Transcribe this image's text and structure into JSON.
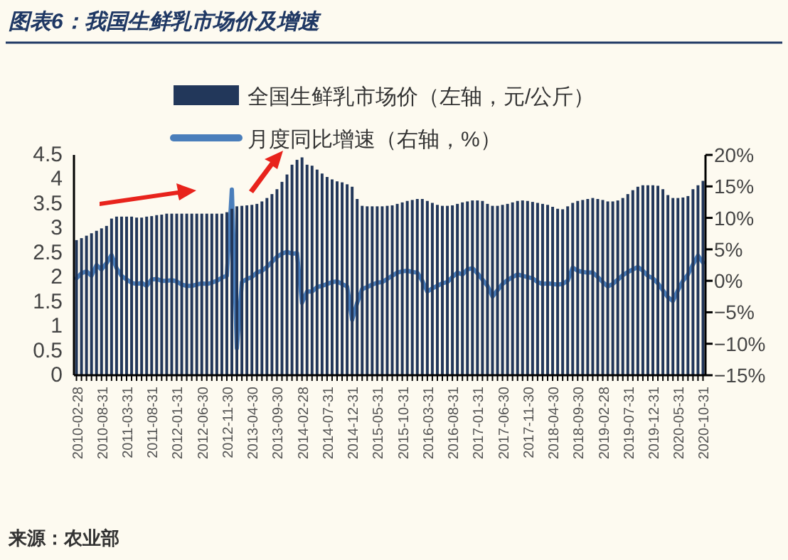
{
  "chart_data": {
    "type": "bar",
    "title": "图表6：我国生鲜乳市场价及增速",
    "legend": "top",
    "grid": false,
    "categories": [
      "2010-02-28",
      null,
      null,
      null,
      null,
      "2010-08-31",
      null,
      null,
      null,
      null,
      "2011-03-31",
      null,
      null,
      null,
      null,
      "2011-08-31",
      null,
      null,
      null,
      null,
      "2012-01-31",
      null,
      null,
      null,
      null,
      "2012-06-30",
      null,
      null,
      null,
      null,
      "2012-11-30",
      null,
      null,
      null,
      null,
      "2013-04-30",
      null,
      null,
      null,
      null,
      "2013-09-30",
      null,
      null,
      null,
      null,
      "2014-02-28",
      null,
      null,
      null,
      null,
      "2014-07-31",
      null,
      null,
      null,
      null,
      "2014-12-31",
      null,
      null,
      null,
      null,
      "2015-05-31",
      null,
      null,
      null,
      null,
      "2015-10-31",
      null,
      null,
      null,
      null,
      "2016-03-31",
      null,
      null,
      null,
      null,
      "2016-08-31",
      null,
      null,
      null,
      null,
      "2017-01-31",
      null,
      null,
      null,
      null,
      "2017-06-30",
      null,
      null,
      null,
      null,
      "2017-11-30",
      null,
      null,
      null,
      null,
      "2018-04-30",
      null,
      null,
      null,
      null,
      "2018-09-30",
      null,
      null,
      null,
      null,
      "2019-02-28",
      null,
      null,
      null,
      null,
      "2019-07-31",
      null,
      null,
      null,
      null,
      "2019-12-31",
      null,
      null,
      null,
      null,
      "2020-05-31",
      null,
      null,
      null,
      null,
      "2020-10-31"
    ],
    "series": [
      {
        "name": "全国生鲜乳市场价（左轴，元/公斤）",
        "color": "#22375a",
        "values": [
          2.76,
          2.8,
          2.85,
          2.9,
          2.95,
          3.0,
          3.05,
          3.2,
          3.24,
          3.24,
          3.24,
          3.24,
          3.22,
          3.22,
          3.24,
          3.25,
          3.27,
          3.28,
          3.3,
          3.3,
          3.3,
          3.3,
          3.3,
          3.3,
          3.3,
          3.3,
          3.3,
          3.3,
          3.3,
          3.3,
          3.33,
          3.4,
          3.45,
          3.46,
          3.47,
          3.48,
          3.5,
          3.55,
          3.62,
          3.7,
          3.8,
          3.95,
          4.1,
          4.3,
          4.4,
          4.45,
          4.3,
          4.28,
          4.2,
          4.12,
          4.05,
          4.0,
          3.96,
          3.94,
          3.9,
          3.85,
          3.6,
          3.46,
          3.45,
          3.45,
          3.45,
          3.45,
          3.46,
          3.47,
          3.5,
          3.53,
          3.56,
          3.58,
          3.6,
          3.6,
          3.56,
          3.52,
          3.48,
          3.46,
          3.46,
          3.47,
          3.5,
          3.53,
          3.55,
          3.57,
          3.57,
          3.56,
          3.5,
          3.46,
          3.46,
          3.48,
          3.5,
          3.53,
          3.56,
          3.57,
          3.56,
          3.54,
          3.52,
          3.5,
          3.48,
          3.44,
          3.4,
          3.39,
          3.45,
          3.52,
          3.56,
          3.58,
          3.6,
          3.62,
          3.6,
          3.58,
          3.55,
          3.55,
          3.57,
          3.62,
          3.7,
          3.78,
          3.85,
          3.88,
          3.88,
          3.88,
          3.87,
          3.8,
          3.68,
          3.62,
          3.62,
          3.63,
          3.66,
          3.8,
          3.88,
          3.97
        ]
      },
      {
        "name": "月度同比增速（右轴，%）",
        "type": "line",
        "axis": "y2",
        "color": "#4a7ebb",
        "values": [
          0.4,
          1.2,
          1.5,
          0.8,
          2.5,
          1.8,
          2.8,
          4.1,
          2.0,
          0.8,
          0.2,
          -0.3,
          -0.5,
          -0.3,
          -0.8,
          0.2,
          0.3,
          0.0,
          0.0,
          0.1,
          -0.1,
          -0.6,
          -0.8,
          -0.8,
          -0.6,
          -0.4,
          -0.5,
          -0.3,
          0.0,
          0.5,
          0.8,
          14.5,
          -10.7,
          -0.2,
          0.3,
          0.6,
          1.3,
          1.6,
          2.2,
          3.0,
          3.8,
          4.3,
          4.6,
          4.3,
          4.4,
          -3.5,
          -1.7,
          -1.7,
          -1.0,
          -0.8,
          -0.5,
          -0.2,
          -0.1,
          -0.5,
          -0.9,
          -6.2,
          -3.5,
          -1.3,
          -1.0,
          -0.6,
          -0.3,
          -0.2,
          0.3,
          0.8,
          1.3,
          1.5,
          1.6,
          1.4,
          1.3,
          0.0,
          -1.7,
          -1.2,
          -0.8,
          -0.4,
          -0.2,
          0.6,
          1.3,
          1.0,
          1.8,
          2.0,
          1.2,
          0.2,
          -0.8,
          -2.5,
          -1.5,
          -0.5,
          0.1,
          0.6,
          1.0,
          0.8,
          0.6,
          0.4,
          -0.2,
          -0.5,
          -0.4,
          -0.5,
          -0.6,
          -0.5,
          0.0,
          2.1,
          1.6,
          1.4,
          1.3,
          1.3,
          0.6,
          -0.2,
          -0.9,
          -0.5,
          0.2,
          0.9,
          1.4,
          1.8,
          2.2,
          1.6,
          0.8,
          0.4,
          -0.4,
          -1.5,
          -2.6,
          -3.2,
          -1.5,
          0.0,
          1.0,
          2.6,
          4.0,
          2.9
        ]
      }
    ],
    "ylim": [
      0,
      4.5
    ],
    "yticks": [
      0,
      0.5,
      1,
      1.5,
      2,
      2.5,
      3,
      3.5,
      4,
      4.5
    ],
    "y2lim": [
      -15,
      20
    ],
    "y2ticks": [
      {
        "value": -15,
        "label": "−15%"
      },
      {
        "value": -10,
        "label": "−10%"
      },
      {
        "value": -5,
        "label": "−5%"
      },
      {
        "value": 0,
        "label": "0%"
      },
      {
        "value": 5,
        "label": "5%"
      },
      {
        "value": 10,
        "label": "10%"
      },
      {
        "value": 15,
        "label": "15%"
      },
      {
        "value": 20,
        "label": "20%"
      }
    ],
    "annotations": [
      "来源：农业部"
    ]
  }
}
